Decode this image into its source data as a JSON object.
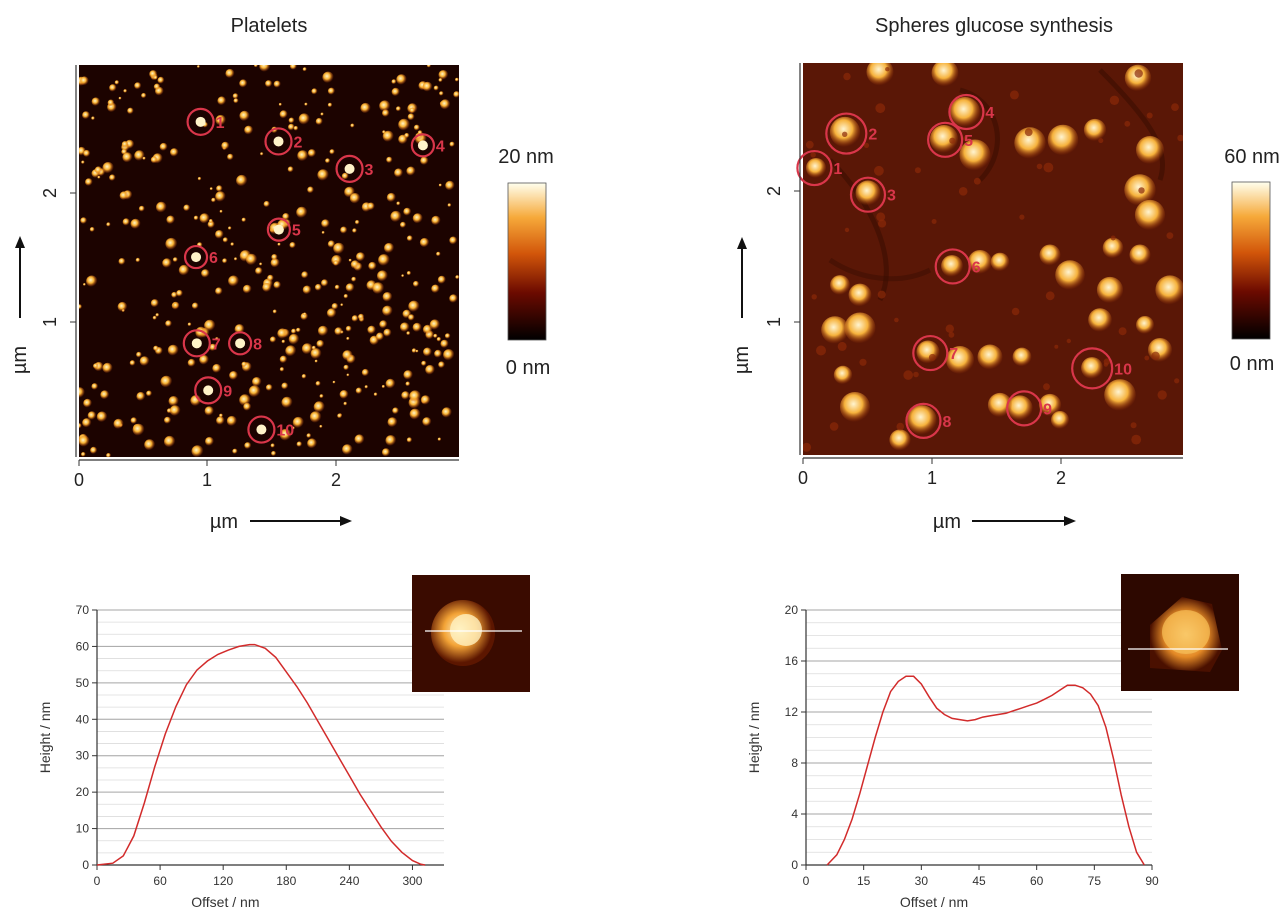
{
  "colors": {
    "marker": "#d9364a",
    "profile_line": "#d22b2b",
    "grid_major": "#a6a6a6",
    "grid_minor": "#dcdcdc"
  },
  "panels": {
    "platelets": {
      "title": "Platelets",
      "image_xlabel": "µm",
      "image_ylabel": "µm",
      "x_ticks": [
        "0",
        "1",
        "2"
      ],
      "y_ticks": [
        "1",
        "2"
      ],
      "colorbar": {
        "max": "20 nm",
        "min": "0 nm",
        "colormap": "afmhot"
      },
      "marker_labels": [
        "1",
        "2",
        "3",
        "4",
        "5",
        "6",
        "7",
        "8",
        "9",
        "10"
      ]
    },
    "spheres": {
      "title": "Spheres glucose synthesis",
      "image_xlabel": "µm",
      "image_ylabel": "µm",
      "x_ticks": [
        "0",
        "1",
        "2"
      ],
      "y_ticks": [
        "1",
        "2"
      ],
      "colorbar": {
        "max": "60 nm",
        "min": "0 nm",
        "colormap": "afmhot"
      },
      "marker_labels": [
        "1",
        "2",
        "3",
        "4",
        "5",
        "6",
        "7",
        "8",
        "9",
        "10"
      ]
    }
  },
  "chart_data": [
    {
      "type": "line",
      "xlabel": "Offset / nm",
      "ylabel": "Height / nm",
      "xlim": [
        0,
        330
      ],
      "ylim": [
        0,
        70
      ],
      "xticks": [
        0,
        60,
        120,
        180,
        240,
        300
      ],
      "yticks": [
        0,
        10,
        20,
        30,
        40,
        50,
        60,
        70
      ],
      "grid": true,
      "series": [
        {
          "x": [
            0,
            15,
            25,
            35,
            45,
            55,
            65,
            75,
            85,
            95,
            105,
            115,
            125,
            135,
            145,
            150,
            160,
            170,
            180,
            190,
            200,
            210,
            220,
            230,
            240,
            250,
            260,
            270,
            280,
            290,
            300,
            308,
            312
          ],
          "y": [
            0,
            0.5,
            2.5,
            8,
            17,
            27,
            36,
            43.5,
            49.5,
            53.5,
            56,
            57.8,
            59,
            60,
            60.5,
            60.5,
            59.5,
            57,
            53,
            49,
            44.5,
            39.5,
            34.5,
            29.5,
            24.5,
            19.5,
            15,
            10.5,
            6.5,
            3.5,
            1.2,
            0.2,
            0
          ]
        }
      ]
    },
    {
      "type": "line",
      "xlabel": "Offset / nm",
      "ylabel": "Height / nm",
      "xlim": [
        0,
        90
      ],
      "ylim": [
        0,
        20
      ],
      "xticks": [
        0,
        15,
        30,
        45,
        60,
        75,
        90
      ],
      "yticks": [
        0,
        4,
        8,
        12,
        16,
        20
      ],
      "grid": true,
      "series": [
        {
          "x": [
            5.5,
            8,
            10,
            12,
            14,
            16,
            18,
            20,
            22,
            24,
            26,
            28,
            30,
            32,
            34,
            36,
            38,
            40,
            42,
            44,
            46,
            48,
            50,
            52,
            54,
            56,
            58,
            60,
            62,
            64,
            66,
            68,
            70,
            72,
            74,
            76,
            78,
            80,
            82,
            84,
            86,
            88
          ],
          "y": [
            0,
            0.8,
            2,
            3.6,
            5.6,
            7.8,
            10,
            12,
            13.6,
            14.4,
            14.8,
            14.8,
            14.2,
            13.2,
            12.3,
            11.8,
            11.5,
            11.4,
            11.3,
            11.4,
            11.6,
            11.7,
            11.8,
            11.9,
            12.1,
            12.3,
            12.5,
            12.7,
            13,
            13.3,
            13.7,
            14.1,
            14.1,
            13.9,
            13.4,
            12.5,
            10.8,
            8.3,
            5.5,
            3,
            1,
            0
          ]
        }
      ]
    }
  ]
}
